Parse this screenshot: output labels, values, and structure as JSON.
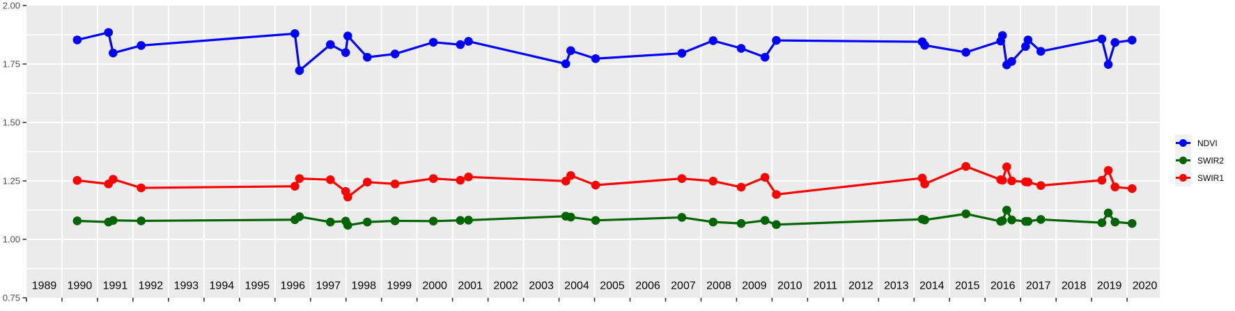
{
  "chart_data": {
    "type": "line",
    "title": "",
    "xlabel": "",
    "ylabel": "",
    "xlim": [
      1989,
      2020.92
    ],
    "ylim": [
      0.75,
      2.0
    ],
    "grid": true,
    "legend_position": "right",
    "x": [
      1990.43,
      1991.31,
      1991.44,
      1992.23,
      1996.56,
      1996.69,
      1997.56,
      1997.99,
      1998.05,
      1998.6,
      1999.38,
      2000.46,
      2001.22,
      2001.45,
      2004.19,
      2004.33,
      2005.03,
      2007.46,
      2008.34,
      2009.13,
      2009.8,
      2010.12,
      2014.23,
      2014.3,
      2015.46,
      2016.44,
      2016.49,
      2016.61,
      2016.75,
      2017.14,
      2017.21,
      2017.57,
      2019.29,
      2019.47,
      2019.66,
      2020.14
    ],
    "series": [
      {
        "name": "NDVI",
        "color": "#0000FF",
        "values": [
          1.853,
          1.885,
          1.797,
          1.829,
          1.88,
          1.722,
          1.833,
          1.799,
          1.87,
          1.779,
          1.793,
          1.843,
          1.833,
          1.847,
          1.751,
          1.807,
          1.773,
          1.796,
          1.85,
          1.817,
          1.779,
          1.851,
          1.845,
          1.83,
          1.8,
          1.848,
          1.872,
          1.746,
          1.761,
          1.825,
          1.853,
          1.804,
          1.857,
          1.748,
          1.842,
          1.852
        ]
      },
      {
        "name": "SWIR2",
        "color": "#006400",
        "values": [
          1.079,
          1.074,
          1.081,
          1.079,
          1.084,
          1.097,
          1.074,
          1.078,
          1.06,
          1.074,
          1.079,
          1.078,
          1.081,
          1.082,
          1.099,
          1.095,
          1.081,
          1.094,
          1.074,
          1.068,
          1.081,
          1.063,
          1.086,
          1.083,
          1.109,
          1.077,
          1.08,
          1.125,
          1.083,
          1.077,
          1.077,
          1.085,
          1.071,
          1.113,
          1.074,
          1.068
        ]
      },
      {
        "name": "SWIR1",
        "color": "#FF0000",
        "values": [
          1.252,
          1.237,
          1.257,
          1.22,
          1.227,
          1.26,
          1.255,
          1.205,
          1.181,
          1.245,
          1.237,
          1.26,
          1.253,
          1.267,
          1.249,
          1.273,
          1.232,
          1.26,
          1.249,
          1.223,
          1.265,
          1.192,
          1.262,
          1.237,
          1.312,
          1.255,
          1.253,
          1.31,
          1.25,
          1.246,
          1.245,
          1.23,
          1.253,
          1.295,
          1.224,
          1.217
        ]
      }
    ],
    "x_tick_years": [
      1989,
      1990,
      1991,
      1992,
      1993,
      1994,
      1995,
      1996,
      1997,
      1998,
      1999,
      2000,
      2001,
      2002,
      2003,
      2004,
      2005,
      2006,
      2007,
      2008,
      2009,
      2010,
      2011,
      2012,
      2013,
      2014,
      2015,
      2016,
      2017,
      2018,
      2019,
      2020
    ],
    "x_tick_labels": [
      "1989",
      "1990",
      "1991",
      "1992",
      "1993",
      "1994",
      "1995",
      "1996",
      "1997",
      "1998",
      "1999",
      "2000",
      "2001",
      "2002",
      "2003",
      "2004",
      "2005",
      "2006",
      "2007",
      "2008",
      "2009",
      "2010",
      "2011",
      "2012",
      "2013",
      "2014",
      "2015",
      "2016",
      "2017",
      "2018",
      "2019",
      "2020"
    ],
    "y_ticks": [
      0.75,
      1.0,
      1.25,
      1.5,
      1.75,
      2.0
    ],
    "y_tick_labels": [
      "0.75",
      "1.00",
      "1.25",
      "1.50",
      "1.75",
      "2.00"
    ],
    "y_minor_ticks": [
      0.875,
      1.125,
      1.375,
      1.625,
      1.875
    ],
    "colors": {
      "panel_bg": "#EBEBEB",
      "grid": "#FFFFFF",
      "tick": "#333333",
      "axis_text": "#4D4D4D",
      "year_text": "#000000",
      "legend_key_bg": "#F1F1F1",
      "page_bg": "#FFFFFF"
    }
  }
}
